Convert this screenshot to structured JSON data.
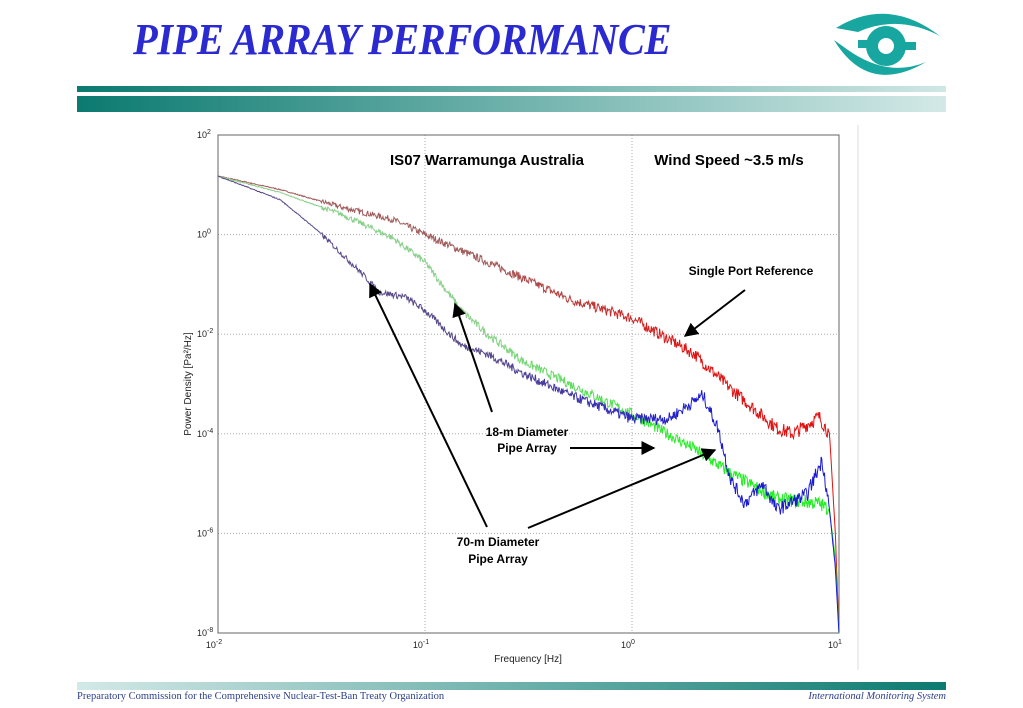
{
  "slide": {
    "title": "PIPE ARRAY PERFORMANCE",
    "footer_left": "Preparatory Commission for the Comprehensive Nuclear-Test-Ban Treaty Organization",
    "footer_right": "International Monitoring System",
    "logo_icon": "ctbto-logo-icon",
    "accent_color": "#0b7a70",
    "title_color": "#2a2ad0"
  },
  "chart_data": {
    "type": "line",
    "title": "IS07 Warramunga Australia",
    "subtitle": "Wind Speed ~3.5 m/s",
    "xlabel": "Frequency [Hz]",
    "ylabel": "Power Density [Pa²/Hz]",
    "xscale": "log",
    "yscale": "log",
    "xlim": [
      0.01,
      10
    ],
    "ylim": [
      1e-08,
      100
    ],
    "grid": true,
    "x_ticks": [
      {
        "base": "10",
        "exp": "-2"
      },
      {
        "base": "10",
        "exp": "-1"
      },
      {
        "base": "10",
        "exp": "0"
      },
      {
        "base": "10",
        "exp": "1"
      }
    ],
    "y_ticks": [
      {
        "base": "10",
        "exp": "2"
      },
      {
        "base": "10",
        "exp": "0"
      },
      {
        "base": "10",
        "exp": "-2"
      },
      {
        "base": "10",
        "exp": "-4"
      },
      {
        "base": "10",
        "exp": "-6"
      },
      {
        "base": "10",
        "exp": "-8"
      }
    ],
    "series": [
      {
        "color_low": "#a05a5a",
        "color_high": "#e01010",
        "points": [
          [
            0.01,
            15
          ],
          [
            0.02,
            8
          ],
          [
            0.04,
            3.5
          ],
          [
            0.07,
            2
          ],
          [
            0.1,
            1
          ],
          [
            0.2,
            0.28
          ],
          [
            0.5,
            0.05
          ],
          [
            1,
            0.021
          ],
          [
            2,
            0.004
          ],
          [
            3,
            0.0008
          ],
          [
            5,
            0.00013
          ],
          [
            6,
            0.0001
          ],
          [
            8,
            0.00022
          ],
          [
            9,
            0.0001
          ],
          [
            9.6,
            1e-06
          ],
          [
            10,
            1e-08
          ]
        ]
      },
      {
        "color_low": "#8ad08a",
        "color_high": "#22ee22",
        "points": [
          [
            0.01,
            15
          ],
          [
            0.02,
            7
          ],
          [
            0.04,
            2.5
          ],
          [
            0.07,
            0.85
          ],
          [
            0.1,
            0.28
          ],
          [
            0.15,
            0.03
          ],
          [
            0.2,
            0.01
          ],
          [
            0.3,
            0.0028
          ],
          [
            0.5,
            0.001
          ],
          [
            1,
            0.00025
          ],
          [
            2,
            5e-05
          ],
          [
            3,
            1.6e-05
          ],
          [
            5,
            5e-06
          ],
          [
            8,
            4e-06
          ],
          [
            9,
            3e-06
          ],
          [
            9.6,
            3e-07
          ],
          [
            10,
            1e-08
          ]
        ]
      },
      {
        "color_low": "#5a4a8a",
        "color_high": "#1a1ad0",
        "points": [
          [
            0.01,
            15
          ],
          [
            0.02,
            5
          ],
          [
            0.03,
            1.25
          ],
          [
            0.05,
            0.16
          ],
          [
            0.06,
            0.07
          ],
          [
            0.08,
            0.056
          ],
          [
            0.1,
            0.03
          ],
          [
            0.15,
            0.006
          ],
          [
            0.2,
            0.004
          ],
          [
            0.3,
            0.0016
          ],
          [
            0.5,
            0.0006
          ],
          [
            1,
            0.0002
          ],
          [
            1.5,
            0.0002
          ],
          [
            2.2,
            0.0006
          ],
          [
            2.6,
            0.00013
          ],
          [
            3,
            1.2e-05
          ],
          [
            3.5,
            4e-06
          ],
          [
            4.3,
            1e-05
          ],
          [
            5,
            3e-06
          ],
          [
            7,
            6e-06
          ],
          [
            8.3,
            3e-05
          ],
          [
            9,
            3e-06
          ],
          [
            9.6,
            2e-07
          ],
          [
            10,
            1e-08
          ]
        ]
      }
    ],
    "annotations": {
      "single_port": "Single Port Reference",
      "pipe18_line1": "18-m Diameter",
      "pipe18_line2": "Pipe Array",
      "pipe70_line1": "70-m Diameter",
      "pipe70_line2": "Pipe Array"
    }
  }
}
